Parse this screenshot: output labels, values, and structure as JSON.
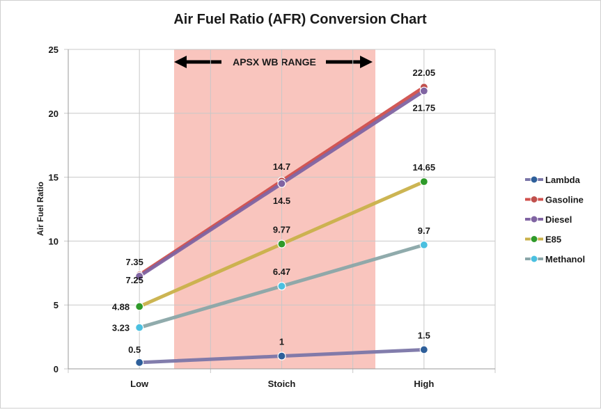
{
  "chart_data": {
    "type": "line",
    "title": "Air Fuel Ratio (AFR) Conversion Chart",
    "xlabel": "",
    "ylabel": "Air Fuel Ratio",
    "categories": [
      "Low",
      "Stoich",
      "High"
    ],
    "ylim": [
      0,
      25
    ],
    "yticks": [
      0,
      5,
      10,
      15,
      20,
      25
    ],
    "grid": true,
    "legend_position": "right",
    "series": [
      {
        "name": "Lambda",
        "values": [
          0.5,
          1,
          1.5
        ],
        "color": "#2e5f9a",
        "line_color": "#7b76a8",
        "labels": [
          "0.5",
          "1",
          "1.5"
        ]
      },
      {
        "name": "Gasoline",
        "values": [
          7.35,
          14.7,
          22.05
        ],
        "color": "#c0504d",
        "line_color": "#d0504d",
        "labels": [
          "7.35",
          "14.7",
          "22.05"
        ]
      },
      {
        "name": "Diesel",
        "values": [
          7.25,
          14.5,
          21.75
        ],
        "color": "#8064a2",
        "line_color": "#8064a2",
        "labels": [
          "7.25",
          "14.5",
          "21.75"
        ]
      },
      {
        "name": "E85",
        "values": [
          4.88,
          9.77,
          14.65
        ],
        "color": "#2f9a2a",
        "line_color": "#c9b14a",
        "labels": [
          "4.88",
          "9.77",
          "14.65"
        ]
      },
      {
        "name": "Methanol",
        "values": [
          3.23,
          6.47,
          9.7
        ],
        "color": "#4bc0e0",
        "line_color": "#8aa6a8",
        "labels": [
          "3.23",
          "6.47",
          "9.7"
        ]
      }
    ],
    "annotation": {
      "text": "APSX WB RANGE",
      "band_color": "#f9c5be"
    }
  }
}
